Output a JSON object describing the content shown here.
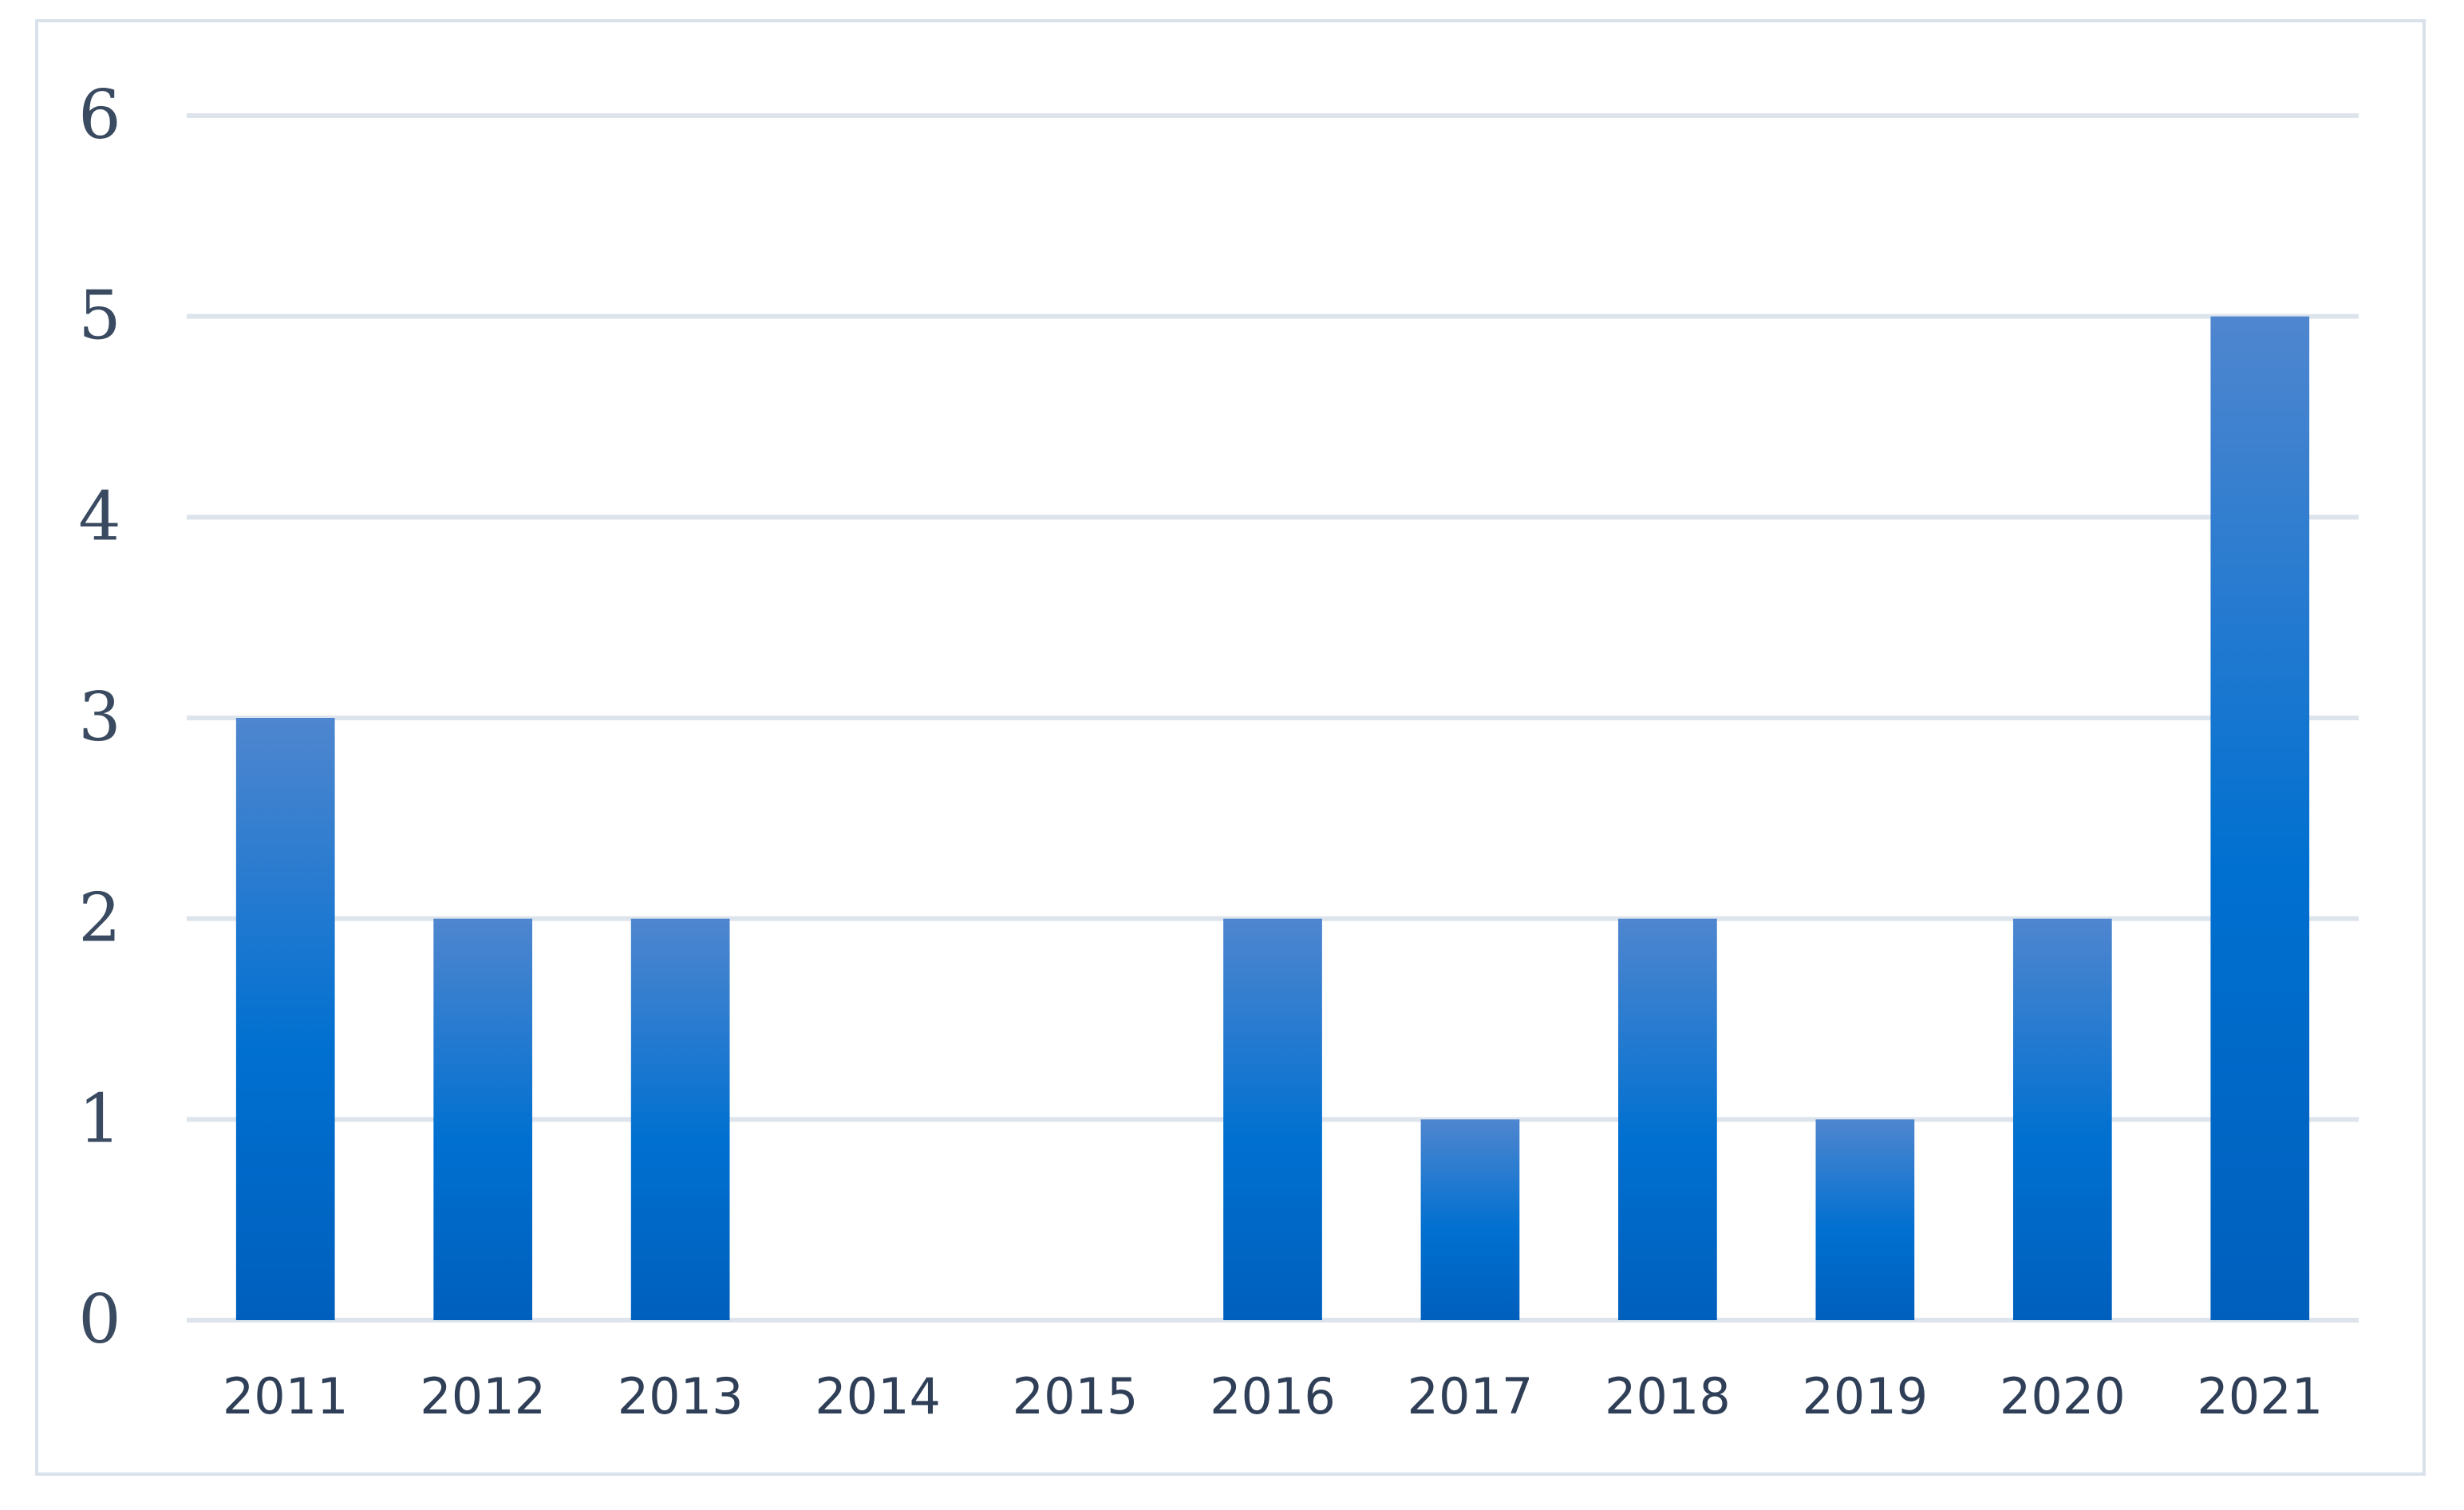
{
  "chart_data": {
    "type": "bar",
    "title": "",
    "xlabel": "",
    "ylabel": "",
    "categories": [
      "2011",
      "2012",
      "2013",
      "2014",
      "2015",
      "2016",
      "2017",
      "2018",
      "2019",
      "2020",
      "2021"
    ],
    "values": [
      3,
      2,
      2,
      0,
      0,
      2,
      1,
      2,
      1,
      2,
      5
    ],
    "ylim": [
      0,
      6
    ],
    "yticks": [
      0,
      1,
      2,
      3,
      4,
      5,
      6
    ],
    "grid": true,
    "legend": "none",
    "colors": {
      "bar_top": "#4f86cf",
      "bar_mid": "#0070d0",
      "bar_bottom": "#005fbd",
      "grid": "#dde4ec",
      "frame": "#d9e1ea"
    }
  }
}
